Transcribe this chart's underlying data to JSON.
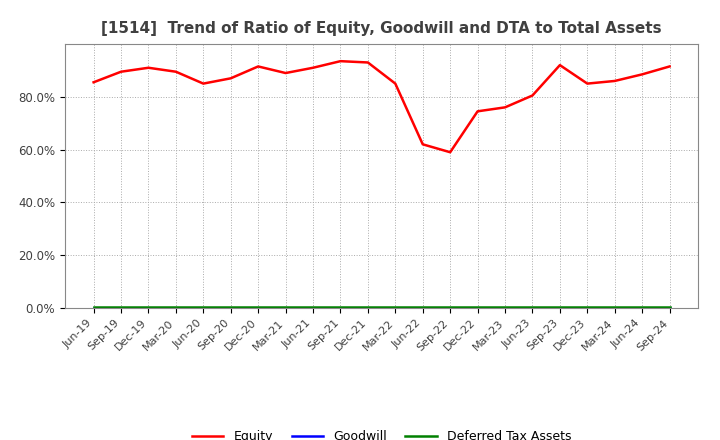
{
  "title": "[1514]  Trend of Ratio of Equity, Goodwill and DTA to Total Assets",
  "x_labels": [
    "Jun-19",
    "Sep-19",
    "Dec-19",
    "Mar-20",
    "Jun-20",
    "Sep-20",
    "Dec-20",
    "Mar-21",
    "Jun-21",
    "Sep-21",
    "Dec-21",
    "Mar-22",
    "Jun-22",
    "Sep-22",
    "Dec-22",
    "Mar-23",
    "Jun-23",
    "Sep-23",
    "Dec-23",
    "Mar-24",
    "Jun-24",
    "Sep-24"
  ],
  "equity": [
    85.5,
    89.5,
    91.0,
    89.5,
    85.0,
    87.0,
    91.5,
    89.0,
    91.0,
    93.5,
    93.0,
    85.0,
    62.0,
    59.0,
    74.5,
    76.0,
    80.5,
    92.0,
    85.0,
    86.0,
    88.5,
    91.5
  ],
  "goodwill": [
    0.0,
    0.0,
    0.0,
    0.0,
    0.0,
    0.0,
    0.0,
    0.0,
    0.0,
    0.0,
    0.0,
    0.0,
    0.0,
    0.0,
    0.0,
    0.0,
    0.0,
    0.0,
    0.0,
    0.0,
    0.0,
    0.0
  ],
  "dta": [
    0.3,
    0.3,
    0.3,
    0.3,
    0.3,
    0.3,
    0.3,
    0.3,
    0.3,
    0.3,
    0.3,
    0.3,
    0.3,
    0.3,
    0.3,
    0.3,
    0.3,
    0.3,
    0.3,
    0.3,
    0.3,
    0.3
  ],
  "equity_color": "#FF0000",
  "goodwill_color": "#0000FF",
  "dta_color": "#008000",
  "ylim": [
    0,
    100
  ],
  "yticks": [
    0,
    20,
    40,
    60,
    80
  ],
  "ytick_labels": [
    "0.0%",
    "20.0%",
    "40.0%",
    "60.0%",
    "80.0%"
  ],
  "grid_color": "#aaaaaa",
  "bg_color": "#ffffff",
  "plot_bg_color": "#ffffff",
  "title_fontsize": 11,
  "title_color": "#404040",
  "legend_labels": [
    "Equity",
    "Goodwill",
    "Deferred Tax Assets"
  ],
  "tick_label_color": "#404040",
  "tick_fontsize": 8
}
